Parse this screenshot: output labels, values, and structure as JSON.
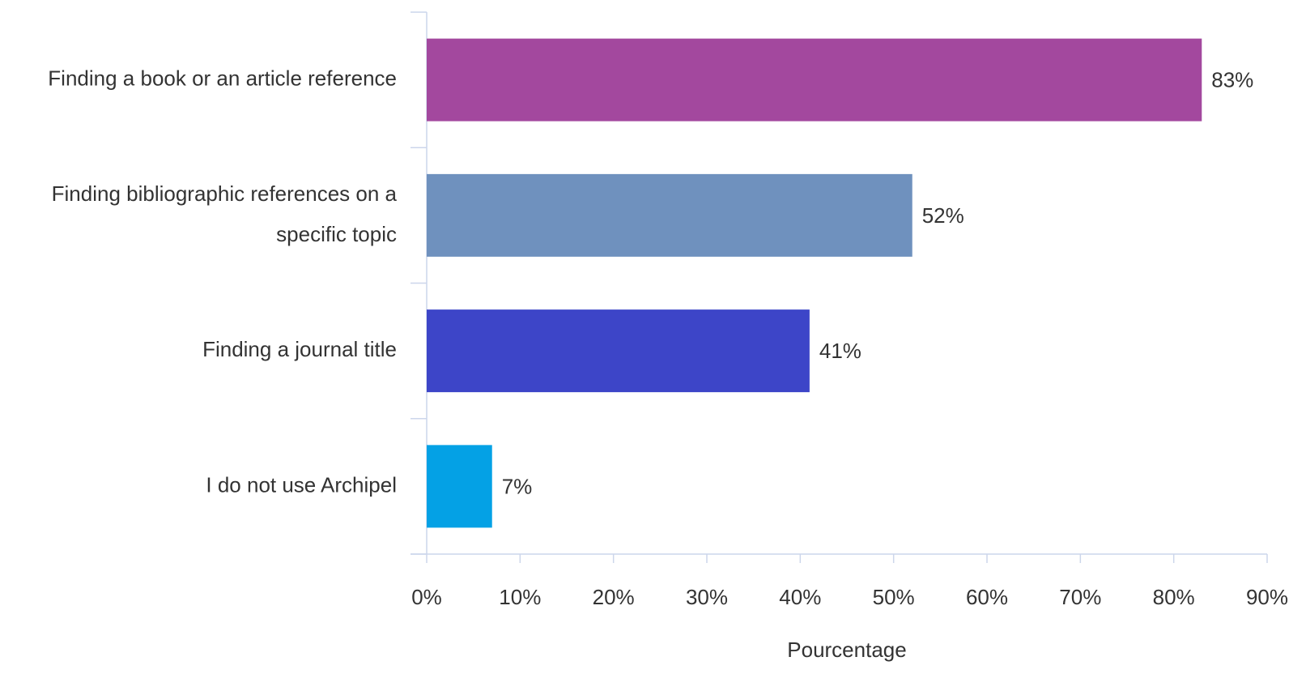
{
  "chart_data": {
    "type": "bar",
    "orientation": "horizontal",
    "categories": [
      "Finding a book or an article reference",
      "Finding bibliographic references on a specific topic",
      "Finding a journal title",
      "I do not use Archipel"
    ],
    "values": [
      83,
      52,
      41,
      7
    ],
    "value_labels": [
      "83%",
      "52%",
      "41%",
      "7%"
    ],
    "colors": [
      "#a3489e",
      "#6f91be",
      "#3d45c8",
      "#04a1e5"
    ],
    "xlabel": "Pourcentage",
    "xlim": [
      0,
      90
    ],
    "xticks": [
      {
        "value": 0,
        "label": "0%"
      },
      {
        "value": 10,
        "label": "10%"
      },
      {
        "value": 20,
        "label": "20%"
      },
      {
        "value": 30,
        "label": "30%"
      },
      {
        "value": 40,
        "label": "40%"
      },
      {
        "value": 50,
        "label": "50%"
      },
      {
        "value": 60,
        "label": "60%"
      },
      {
        "value": 70,
        "label": "70%"
      },
      {
        "value": 80,
        "label": "80%"
      },
      {
        "value": 90,
        "label": "90%"
      }
    ]
  }
}
